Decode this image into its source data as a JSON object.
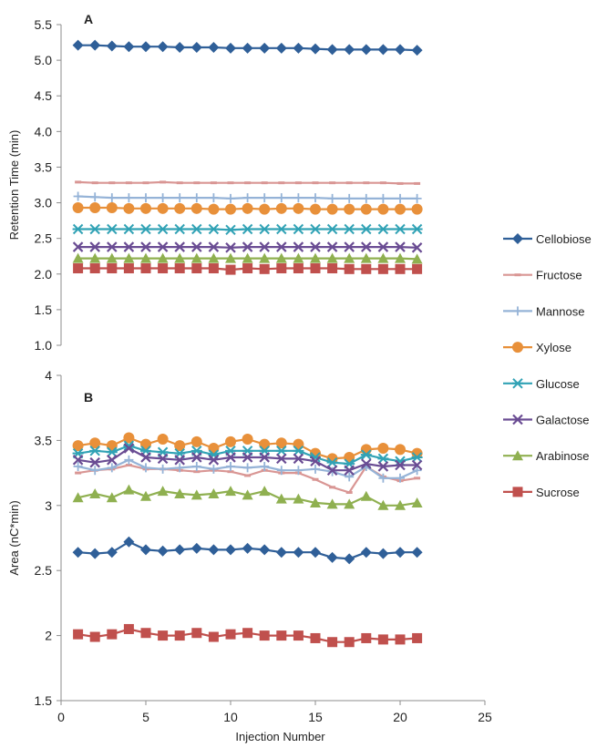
{
  "chart_data": [
    {
      "panel": "A",
      "type": "line",
      "ylabel": "Retention Time (min)",
      "ylim": [
        1.0,
        5.5
      ],
      "y_ticks": [
        "1.0",
        "1.5",
        "2.0",
        "2.5",
        "3.0",
        "3.5",
        "4.0",
        "4.5",
        "5.0",
        "5.5"
      ],
      "x": [
        1,
        2,
        3,
        4,
        5,
        6,
        7,
        8,
        9,
        10,
        11,
        12,
        13,
        14,
        15,
        16,
        17,
        18,
        19,
        20,
        21
      ],
      "series": [
        {
          "name": "Cellobiose",
          "values": [
            5.21,
            5.21,
            5.2,
            5.19,
            5.19,
            5.19,
            5.18,
            5.18,
            5.18,
            5.17,
            5.17,
            5.17,
            5.17,
            5.17,
            5.16,
            5.15,
            5.15,
            5.15,
            5.15,
            5.15,
            5.14
          ]
        },
        {
          "name": "Fructose",
          "values": [
            3.29,
            3.28,
            3.28,
            3.28,
            3.28,
            3.29,
            3.28,
            3.28,
            3.28,
            3.28,
            3.28,
            3.28,
            3.28,
            3.28,
            3.28,
            3.28,
            3.28,
            3.28,
            3.28,
            3.27,
            3.27
          ]
        },
        {
          "name": "Mannose",
          "values": [
            3.09,
            3.08,
            3.07,
            3.07,
            3.07,
            3.07,
            3.07,
            3.07,
            3.07,
            3.06,
            3.07,
            3.07,
            3.07,
            3.07,
            3.07,
            3.06,
            3.06,
            3.06,
            3.06,
            3.06,
            3.06
          ]
        },
        {
          "name": "Xylose",
          "values": [
            2.93,
            2.93,
            2.93,
            2.92,
            2.92,
            2.92,
            2.92,
            2.92,
            2.91,
            2.91,
            2.92,
            2.91,
            2.92,
            2.92,
            2.91,
            2.91,
            2.91,
            2.91,
            2.91,
            2.91,
            2.91
          ]
        },
        {
          "name": "Glucose",
          "values": [
            2.63,
            2.63,
            2.63,
            2.63,
            2.63,
            2.63,
            2.63,
            2.63,
            2.63,
            2.62,
            2.63,
            2.63,
            2.63,
            2.63,
            2.63,
            2.63,
            2.63,
            2.63,
            2.63,
            2.63,
            2.63
          ]
        },
        {
          "name": "Galactose",
          "values": [
            2.38,
            2.38,
            2.38,
            2.38,
            2.38,
            2.38,
            2.38,
            2.38,
            2.38,
            2.37,
            2.38,
            2.38,
            2.38,
            2.38,
            2.38,
            2.38,
            2.38,
            2.38,
            2.38,
            2.38,
            2.37
          ]
        },
        {
          "name": "Arabinose",
          "values": [
            2.22,
            2.22,
            2.22,
            2.22,
            2.22,
            2.22,
            2.22,
            2.22,
            2.22,
            2.22,
            2.22,
            2.22,
            2.22,
            2.22,
            2.22,
            2.22,
            2.22,
            2.22,
            2.22,
            2.22,
            2.21
          ]
        },
        {
          "name": "Sucrose",
          "values": [
            2.08,
            2.08,
            2.08,
            2.08,
            2.08,
            2.08,
            2.08,
            2.08,
            2.08,
            2.06,
            2.08,
            2.07,
            2.08,
            2.08,
            2.08,
            2.08,
            2.07,
            2.07,
            2.07,
            2.07,
            2.07
          ]
        }
      ]
    },
    {
      "panel": "B",
      "type": "line",
      "xlabel": "Injection Number",
      "ylabel": "Area (nC*min)",
      "xlim": [
        0,
        25
      ],
      "x_ticks": [
        "0",
        "5",
        "10",
        "15",
        "20",
        "25"
      ],
      "ylim": [
        1.5,
        4.0
      ],
      "y_ticks": [
        "1.5",
        "2",
        "2.5",
        "3",
        "3.5",
        "4"
      ],
      "x": [
        1,
        2,
        3,
        4,
        5,
        6,
        7,
        8,
        9,
        10,
        11,
        12,
        13,
        14,
        15,
        16,
        17,
        18,
        19,
        20,
        21
      ],
      "series": [
        {
          "name": "Cellobiose",
          "values": [
            2.64,
            2.63,
            2.64,
            2.72,
            2.66,
            2.65,
            2.66,
            2.67,
            2.66,
            2.66,
            2.67,
            2.66,
            2.64,
            2.64,
            2.64,
            2.6,
            2.59,
            2.64,
            2.63,
            2.64,
            2.64
          ]
        },
        {
          "name": "Fructose",
          "values": [
            3.25,
            3.27,
            3.28,
            3.31,
            3.28,
            3.28,
            3.27,
            3.26,
            3.27,
            3.26,
            3.23,
            3.27,
            3.25,
            3.25,
            3.2,
            3.14,
            3.1,
            3.3,
            3.22,
            3.19,
            3.21
          ]
        },
        {
          "name": "Mannose",
          "values": [
            3.3,
            3.27,
            3.29,
            3.35,
            3.29,
            3.28,
            3.29,
            3.3,
            3.28,
            3.3,
            3.29,
            3.3,
            3.27,
            3.27,
            3.28,
            3.26,
            3.22,
            3.3,
            3.21,
            3.21,
            3.27
          ]
        },
        {
          "name": "Xylose",
          "values": [
            3.46,
            3.48,
            3.46,
            3.52,
            3.47,
            3.51,
            3.46,
            3.49,
            3.44,
            3.49,
            3.51,
            3.47,
            3.48,
            3.47,
            3.4,
            3.36,
            3.37,
            3.43,
            3.44,
            3.43,
            3.4
          ]
        },
        {
          "name": "Glucose",
          "values": [
            3.4,
            3.42,
            3.41,
            3.46,
            3.42,
            3.41,
            3.4,
            3.42,
            3.39,
            3.42,
            3.42,
            3.42,
            3.42,
            3.42,
            3.37,
            3.33,
            3.32,
            3.39,
            3.36,
            3.34,
            3.37
          ]
        },
        {
          "name": "Galactose",
          "values": [
            3.35,
            3.33,
            3.35,
            3.44,
            3.37,
            3.36,
            3.35,
            3.37,
            3.35,
            3.37,
            3.37,
            3.37,
            3.36,
            3.36,
            3.34,
            3.27,
            3.27,
            3.32,
            3.3,
            3.31,
            3.31
          ]
        },
        {
          "name": "Arabinose",
          "values": [
            3.06,
            3.09,
            3.06,
            3.12,
            3.07,
            3.11,
            3.09,
            3.08,
            3.09,
            3.11,
            3.08,
            3.11,
            3.05,
            3.05,
            3.02,
            3.01,
            3.01,
            3.07,
            3.0,
            3.0,
            3.02
          ]
        },
        {
          "name": "Sucrose",
          "values": [
            2.01,
            1.99,
            2.01,
            2.05,
            2.02,
            2.0,
            2.0,
            2.02,
            1.99,
            2.01,
            2.02,
            2.0,
            2.0,
            2.0,
            1.98,
            1.95,
            1.95,
            1.98,
            1.97,
            1.97,
            1.98
          ]
        }
      ]
    }
  ],
  "legend": [
    {
      "name": "Cellobiose",
      "color": "#2f5f98",
      "marker": "diamond"
    },
    {
      "name": "Fructose",
      "color": "#d99694",
      "marker": "dash"
    },
    {
      "name": "Mannose",
      "color": "#95b3d7",
      "marker": "plus"
    },
    {
      "name": "Xylose",
      "color": "#e8903a",
      "marker": "circle"
    },
    {
      "name": "Glucose",
      "color": "#31a2b5",
      "marker": "star"
    },
    {
      "name": "Galactose",
      "color": "#6a4c93",
      "marker": "x"
    },
    {
      "name": "Arabinose",
      "color": "#8fb050",
      "marker": "triangle"
    },
    {
      "name": "Sucrose",
      "color": "#c0504d",
      "marker": "square"
    }
  ]
}
